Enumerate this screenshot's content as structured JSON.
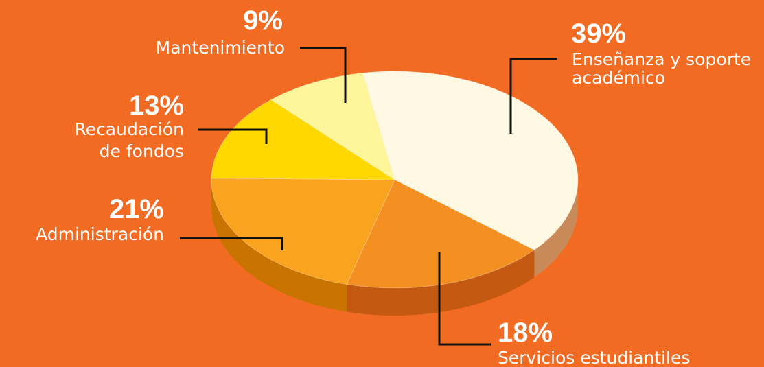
{
  "chart_data": {
    "type": "pie",
    "slices": [
      {
        "label": "Enseñanza y soporte académico",
        "value": 39,
        "pct_text": "39%",
        "label_lines": [
          "Enseñanza y soporte",
          "académico"
        ],
        "color": "#FFF9E3",
        "side_color": "#C98A5A"
      },
      {
        "label": "Servicios estudiantiles",
        "value": 18,
        "pct_text": "18%",
        "label_lines": [
          "Servicios estudiantiles"
        ],
        "color": "#F39021",
        "side_color": "#C45A12"
      },
      {
        "label": "Administración",
        "value": 21,
        "pct_text": "21%",
        "label_lines": [
          "Administración"
        ],
        "color": "#F9A31E",
        "side_color": "#C97400"
      },
      {
        "label": "Recaudación de fondos",
        "value": 13,
        "pct_text": "13%",
        "label_lines": [
          "Recaudación",
          "de fondos"
        ],
        "color": "#FFD800",
        "side_color": "#C9A800"
      },
      {
        "label": "Mantenimiento",
        "value": 9,
        "pct_text": "9%",
        "label_lines": [
          "Mantenimiento"
        ],
        "color": "#FFF59A",
        "side_color": "#C9BF60"
      }
    ],
    "background_color": "#F26B23",
    "style": "3d-pie"
  }
}
